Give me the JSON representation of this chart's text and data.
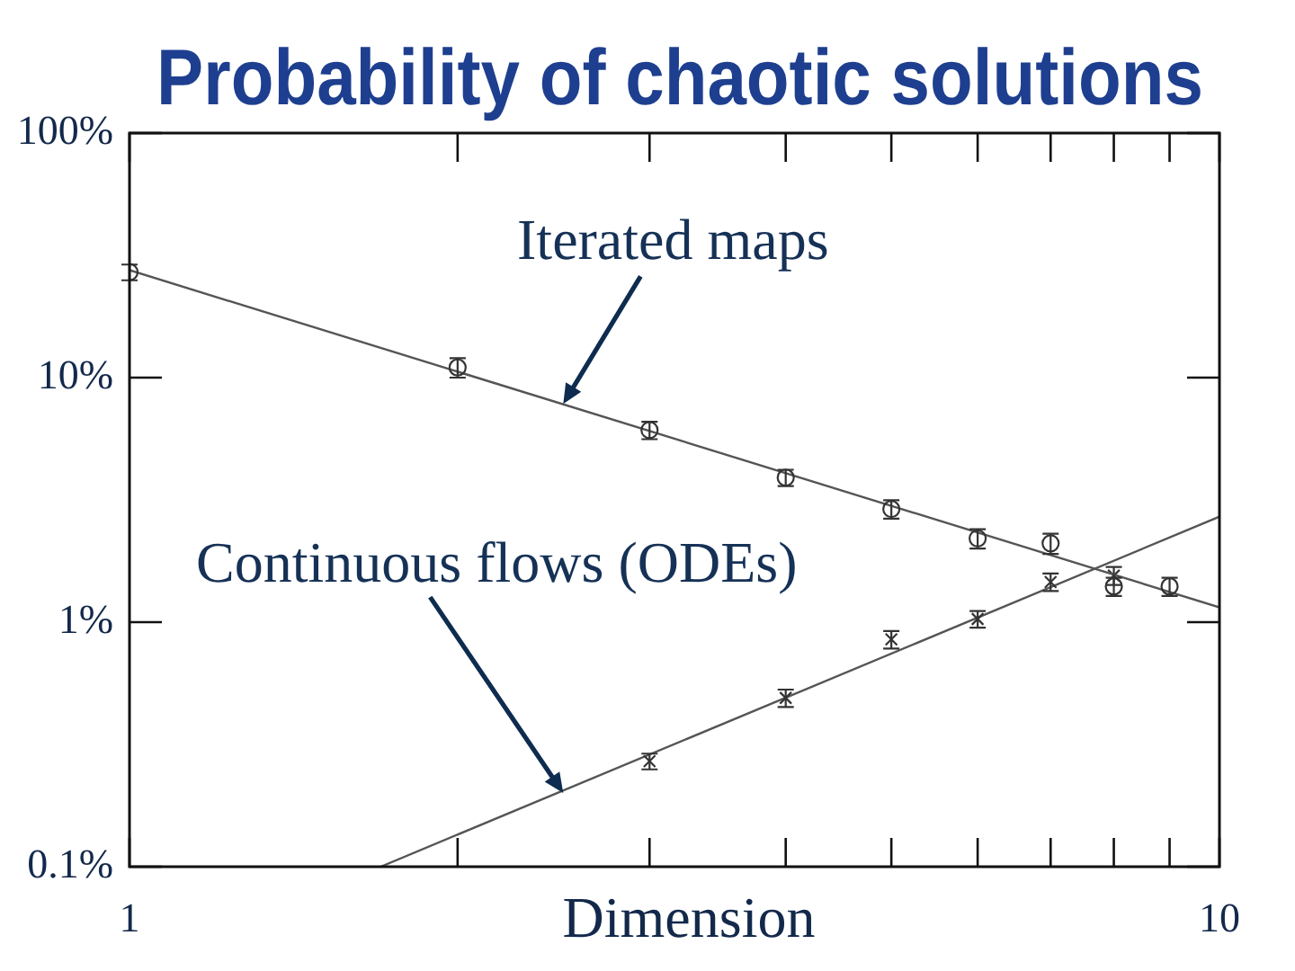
{
  "chart_data": {
    "type": "scatter",
    "title": "Probability of chaotic solutions",
    "xlabel": "Dimension",
    "log": "xy",
    "grid": false,
    "xlim": [
      1,
      10
    ],
    "ylim": [
      0.1,
      100
    ],
    "xticks": [
      1,
      {
        "value": 2,
        "label": null
      },
      {
        "value": 3,
        "label": null
      },
      {
        "value": 4,
        "label": null
      },
      {
        "value": 5,
        "label": null
      },
      {
        "value": 6,
        "label": null
      },
      {
        "value": 7,
        "label": null
      },
      {
        "value": 8,
        "label": null
      },
      {
        "value": 9,
        "label": null
      },
      10
    ],
    "yticks": [
      {
        "value": 0.1,
        "label": "0.1%"
      },
      {
        "value": 1,
        "label": "1%"
      },
      {
        "value": 10,
        "label": "10%"
      },
      {
        "value": 100,
        "label": "100%"
      }
    ],
    "series": [
      {
        "type": "scatter",
        "marker": "circle",
        "color": "#333333",
        "x": [
          1,
          2,
          3,
          4,
          5,
          6,
          7,
          8,
          9
        ],
        "values": [
          27,
          11,
          6.1,
          3.9,
          2.9,
          2.2,
          2.1,
          1.4,
          1.4
        ],
        "errors": [
          2,
          1,
          0.5,
          0.3,
          0.25,
          0.2,
          0.2,
          0.12,
          0.12
        ]
      },
      {
        "type": "line",
        "line_style": "solid",
        "color": "#555555",
        "x": [
          1,
          10
        ],
        "values": [
          27.5,
          1.15
        ]
      },
      {
        "type": "scatter",
        "marker": "cross",
        "color": "#333333",
        "x": [
          3,
          4,
          5,
          6,
          7,
          8
        ],
        "values": [
          0.27,
          0.49,
          0.85,
          1.03,
          1.46,
          1.55
        ],
        "errors": [
          0.02,
          0.04,
          0.07,
          0.08,
          0.12,
          0.13
        ]
      },
      {
        "type": "line",
        "line_style": "solid",
        "color": "#555555",
        "x": [
          1.7,
          10
        ],
        "values": [
          0.1,
          2.7
        ]
      }
    ],
    "annotations": [
      {
        "text": "Iterated maps",
        "x": 2.5,
        "y": 7.8
      },
      {
        "text": "Continuous flows (ODEs)",
        "x": 2.5,
        "y": 0.2
      }
    ]
  }
}
